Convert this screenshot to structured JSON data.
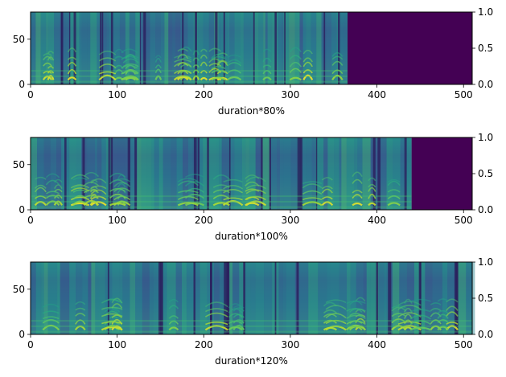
{
  "chart_data": [
    {
      "type": "heatmap",
      "title": "",
      "xlabel": "duration*80%",
      "ylabel": "",
      "xlim": [
        0,
        510
      ],
      "ylim": [
        0,
        80
      ],
      "y2lim": [
        0,
        1
      ],
      "x_ticks": [
        "0",
        "100",
        "200",
        "300",
        "400",
        "500"
      ],
      "y_ticks": [
        "0",
        "50"
      ],
      "y2_ticks": [
        "0.0",
        "0.5",
        "1.0"
      ],
      "voiced_end_frame": 366,
      "colormap": "viridis",
      "padding_color": "#440154"
    },
    {
      "type": "heatmap",
      "title": "",
      "xlabel": "duration*100%",
      "ylabel": "",
      "xlim": [
        0,
        510
      ],
      "ylim": [
        0,
        80
      ],
      "y2lim": [
        0,
        1
      ],
      "x_ticks": [
        "0",
        "100",
        "200",
        "300",
        "400",
        "500"
      ],
      "y_ticks": [
        "0",
        "50"
      ],
      "y2_ticks": [
        "0.0",
        "0.5",
        "1.0"
      ],
      "voiced_end_frame": 440,
      "colormap": "viridis",
      "padding_color": "#440154"
    },
    {
      "type": "heatmap",
      "title": "",
      "xlabel": "duration*120%",
      "ylabel": "",
      "xlim": [
        0,
        510
      ],
      "ylim": [
        0,
        80
      ],
      "y2lim": [
        0,
        1
      ],
      "x_ticks": [
        "0",
        "100",
        "200",
        "300",
        "400",
        "500"
      ],
      "y_ticks": [
        "0",
        "50"
      ],
      "y2_ticks": [
        "0.0",
        "0.5",
        "1.0"
      ],
      "voiced_end_frame": 510,
      "colormap": "viridis",
      "padding_color": "#440154"
    }
  ]
}
